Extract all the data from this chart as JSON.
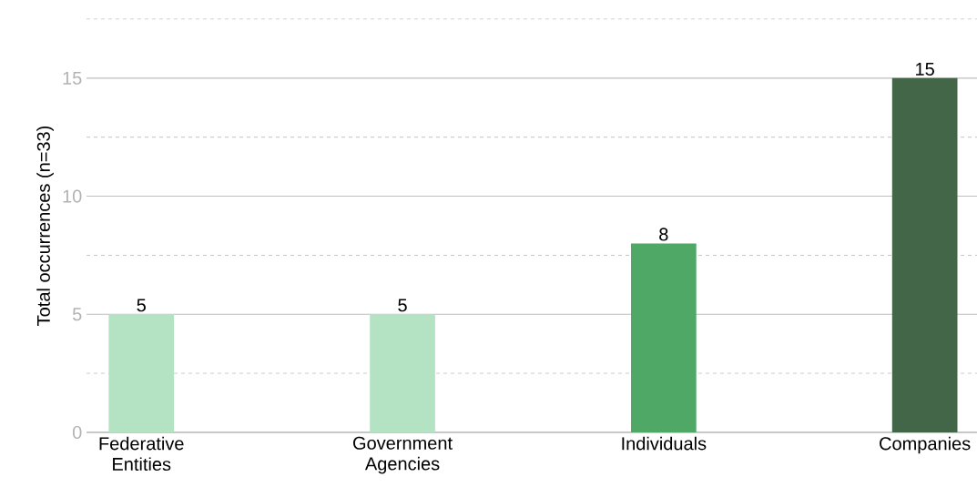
{
  "chart_data": {
    "type": "bar",
    "ylabel": "Total occurrences (n=33)",
    "categories": [
      "Federative Entities",
      "Government Agencies",
      "Individuals",
      "Companies"
    ],
    "values": [
      5,
      5,
      8,
      15
    ],
    "colors": [
      "#b3e3c3",
      "#b3e3c3",
      "#4fa865",
      "#446648"
    ],
    "ylim": [
      0,
      17.5
    ],
    "yticks": [
      0,
      5,
      10,
      15,
      {
        "value": 17.5,
        "label": null
      }
    ],
    "grid": "y",
    "data_labels": true
  }
}
